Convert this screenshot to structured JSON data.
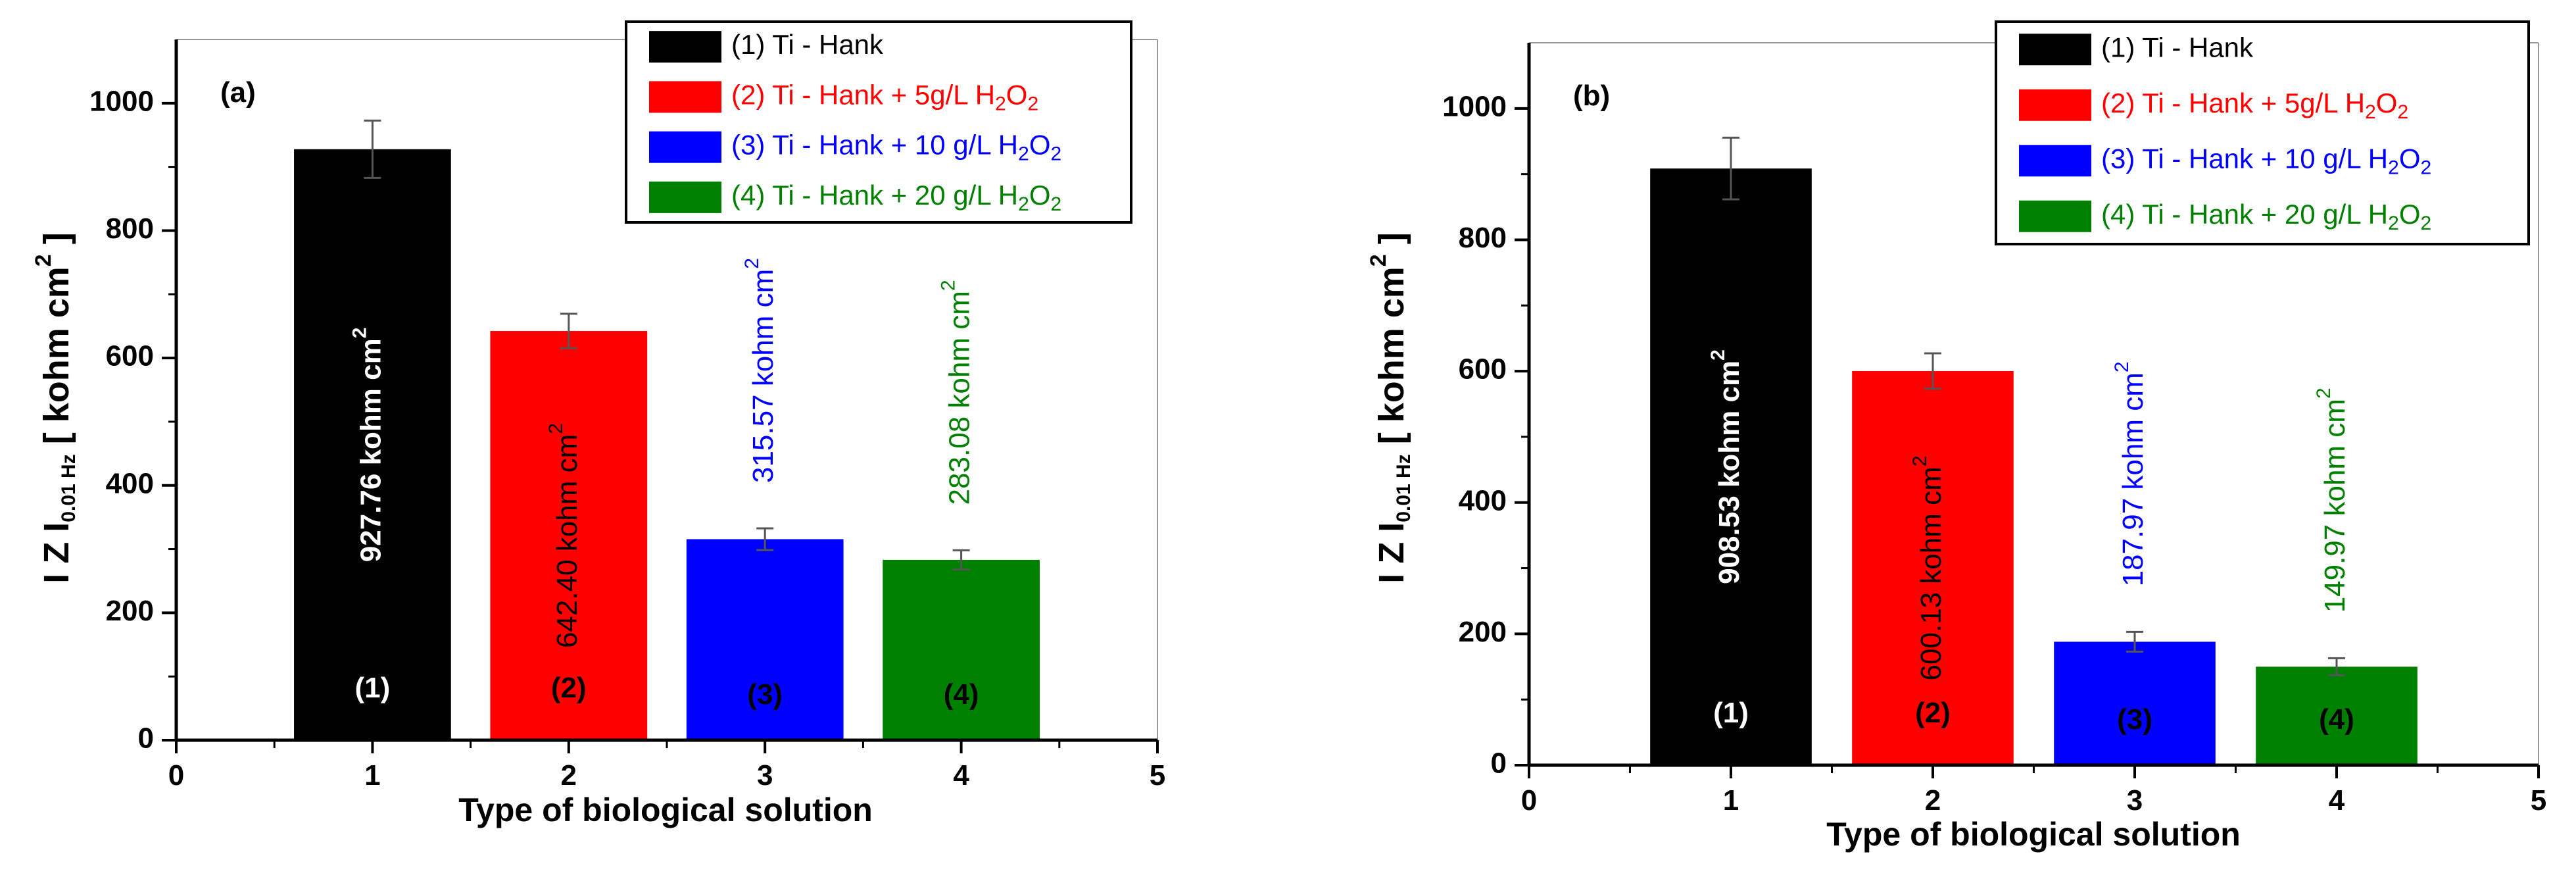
{
  "colors": {
    "ti_hank": "#000000",
    "h2o2_5": "#ff0000",
    "h2o2_10": "#0000ff",
    "h2o2_20": "#008000"
  },
  "legend_entries": [
    {
      "text": "(1) Ti - Hank",
      "sub": "",
      "color": "#000000"
    },
    {
      "text": "(2) Ti - Hank + 5g/L H",
      "sub": "2",
      "tail": "O",
      "sub2": "2",
      "color": "#ff0000"
    },
    {
      "text": "(3) Ti - Hank + 10 g/L H",
      "sub": "2",
      "tail": "O",
      "sub2": "2",
      "color": "#0000ff"
    },
    {
      "text": "(4) Ti - Hank + 20 g/L H",
      "sub": "2",
      "tail": "O",
      "sub2": "2",
      "color": "#008000"
    }
  ],
  "chart_data": [
    {
      "type": "bar",
      "panel_label": "(a)",
      "xlabel": "Type of biological solution",
      "ylabel_main": "I Z I",
      "ylabel_sub": "0.01 Hz",
      "ylabel_unit": "[ kohm cm",
      "ylabel_sup": "2",
      "ylabel_close": "]",
      "x": [
        1,
        2,
        3,
        4
      ],
      "values": [
        927.76,
        642.4,
        315.57,
        283.08
      ],
      "errors": [
        45,
        27,
        17,
        15
      ],
      "colors": [
        "#000000",
        "#ff0000",
        "#0000ff",
        "#008000"
      ],
      "value_labels": [
        "927.76 kohm cm",
        "642.40 kohm cm",
        "315.57 kohm cm",
        "283.08 kohm cm"
      ],
      "value_label_sup": "2",
      "bar_ids": [
        "(1)",
        "(2)",
        "(3)",
        "(4)"
      ],
      "xlim": [
        0,
        5
      ],
      "ylim": [
        0,
        1100
      ],
      "xticks": [
        0,
        1,
        2,
        3,
        4,
        5
      ],
      "yticks": [
        0,
        200,
        400,
        600,
        800,
        1000
      ],
      "legend": "top-right"
    },
    {
      "type": "bar",
      "panel_label": "(b)",
      "xlabel": "Type of biological solution",
      "ylabel_main": "I Z I",
      "ylabel_sub": "0.01 Hz",
      "ylabel_unit": "[ kohm cm",
      "ylabel_sup": "2",
      "ylabel_close": "]",
      "x": [
        1,
        2,
        3,
        4
      ],
      "values": [
        908.53,
        600.13,
        187.97,
        149.97
      ],
      "errors": [
        47,
        27,
        15,
        13
      ],
      "colors": [
        "#000000",
        "#ff0000",
        "#0000ff",
        "#008000"
      ],
      "value_labels": [
        "908.53 kohm cm",
        "600.13 kohm cm",
        "187.97 kohm cm",
        "149.97 kohm cm"
      ],
      "value_label_sup": "2",
      "bar_ids": [
        "(1)",
        "(2)",
        "(3)",
        "(4)"
      ],
      "xlim": [
        0,
        5
      ],
      "ylim": [
        0,
        1100
      ],
      "xticks": [
        0,
        1,
        2,
        3,
        4,
        5
      ],
      "yticks": [
        0,
        200,
        400,
        600,
        800,
        1000
      ],
      "legend": "top-right"
    }
  ]
}
